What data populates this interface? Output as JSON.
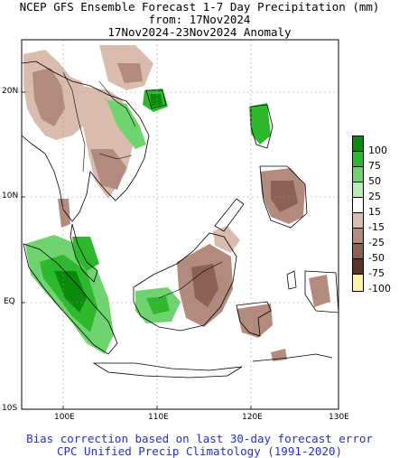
{
  "header": {
    "line1": "NCEP GFS Ensemble Forecast 1-7 Day Precipitation (mm)",
    "line2": "from: 17Nov2024",
    "line3": "17Nov2024-23Nov2024 Anomaly"
  },
  "axes": {
    "lat_labels": [
      "20N",
      "10N",
      "EQ",
      "10S"
    ],
    "lon_labels": [
      "100E",
      "110E",
      "120E",
      "130E"
    ]
  },
  "legend": {
    "labels": [
      "100",
      "75",
      "50",
      "25",
      "15",
      "-15",
      "-25",
      "-50",
      "-75",
      "-100"
    ],
    "colors": [
      "#0b8a0b",
      "#2eb82e",
      "#6fd46f",
      "#b4ecb4",
      "#ffffff",
      "#d9bcae",
      "#b38b7e",
      "#8c6055",
      "#5b3427",
      "#fff3a8"
    ]
  },
  "footer": {
    "line1": "Bias correction based on last 30-day forecast error",
    "line2": "CPC Unified Precip Climatology (1991-2020)"
  },
  "colors": {
    "wet_strong": "#0b8a0b",
    "wet": "#2eb82e",
    "wet_light": "#6fd46f",
    "dry": "#b38b7e",
    "dry_light": "#d9bcae",
    "dry_strong": "#8c6055",
    "footer_text": "#2330c8"
  }
}
